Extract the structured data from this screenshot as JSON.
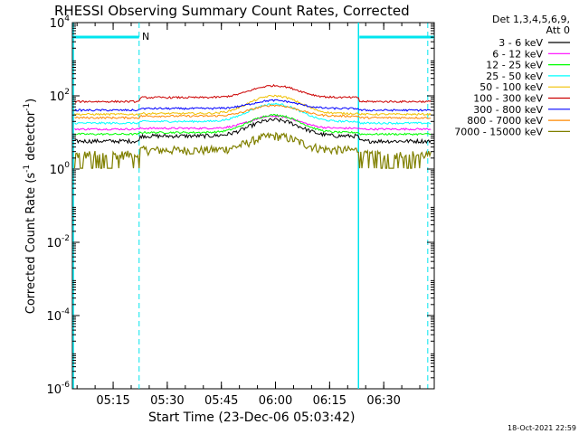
{
  "chart_data": {
    "type": "line",
    "title": "RHESSI Observing Summary Count Rates, Corrected",
    "xlabel": "Start Time (23-Dec-06 05:03:42)",
    "ylabel_main": "Corrected Count Rate (s",
    "ylabel_sup1": "-1",
    "ylabel_mid": " detector",
    "ylabel_sup2": "-1",
    "ylabel_end": ")",
    "yscale": "log",
    "ylim": [
      1e-06,
      10000.0
    ],
    "xlim_minutes": [
      0,
      100.3
    ],
    "x_tick_labels": [
      "05:15",
      "05:30",
      "05:45",
      "06:00",
      "06:15",
      "06:30"
    ],
    "x_tick_minutes": [
      11.3,
      26.3,
      41.3,
      56.3,
      71.3,
      86.3
    ],
    "y_ticks": [
      {
        "base": "10",
        "exp": "-6",
        "v": -6
      },
      {
        "base": "10",
        "exp": "-4",
        "v": -4
      },
      {
        "base": "10",
        "exp": "-2",
        "v": -2
      },
      {
        "base": "10",
        "exp": "0",
        "v": 0
      },
      {
        "base": "10",
        "exp": "2",
        "v": 2
      },
      {
        "base": "10",
        "exp": "4",
        "v": 4
      }
    ],
    "legend_header": [
      "Det 1,3,4,5,6,9,",
      "Att 0"
    ],
    "legend_position": "right",
    "series": [
      {
        "name": "3 - 6 keV",
        "color": "#000000",
        "base": 8,
        "peak": 22,
        "night_factor": 0.45
      },
      {
        "name": "6 - 12 keV",
        "color": "#ff00ff",
        "base": 13,
        "peak": 28,
        "night_factor": 0.9
      },
      {
        "name": "12 - 25 keV",
        "color": "#00ff00",
        "base": 10,
        "peak": 30,
        "night_factor": 0.8
      },
      {
        "name": "25 - 50 keV",
        "color": "#00ffff",
        "base": 20,
        "peak": 60,
        "night_factor": 0.8
      },
      {
        "name": "50 - 100 keV",
        "color": "#f0c000",
        "base": 33,
        "peak": 100,
        "night_factor": 0.9
      },
      {
        "name": "100 - 300 keV",
        "color": "#cc0000",
        "base": 90,
        "peak": 190,
        "night_factor": 0.55
      },
      {
        "name": "300 - 800 keV",
        "color": "#0000ff",
        "base": 45,
        "peak": 75,
        "night_factor": 0.8
      },
      {
        "name": "800 - 7000 keV",
        "color": "#ff8800",
        "base": 28,
        "peak": 55,
        "night_factor": 0.8
      },
      {
        "name": "7000 - 15000 keV",
        "color": "#808000",
        "base": 3.3,
        "peak": 8,
        "night_factor": 0.5
      }
    ],
    "peak_minute": 56,
    "night_intervals_minutes": [
      [
        0,
        18.5
      ],
      [
        79.3,
        100.3
      ]
    ],
    "saa_intervals_minutes": [
      [
        18.5,
        79.3
      ]
    ],
    "marker_label": "N",
    "marker_color": "#00e5ee",
    "footer_timestamp": "18-Oct-2021 22:59"
  }
}
